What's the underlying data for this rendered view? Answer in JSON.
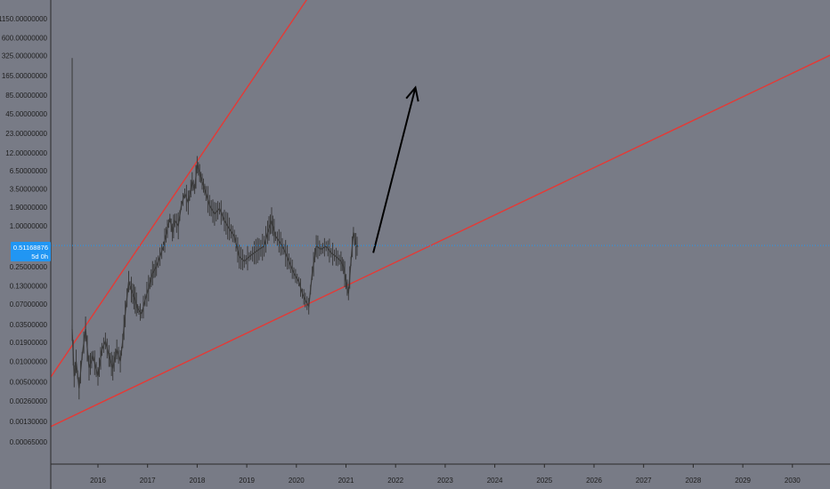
{
  "chart_data": {
    "type": "line",
    "title": "",
    "xlabel": "",
    "ylabel": "",
    "y_scale": "log",
    "ylim": [
      0.0004,
      1150
    ],
    "xlim": [
      2015.0,
      2030.8
    ],
    "y_ticks": [
      "1150.00000000",
      "600.00000000",
      "325.00000000",
      "165.00000000",
      "85.00000000",
      "45.00000000",
      "23.00000000",
      "12.00000000",
      "6.50000000",
      "3.50000000",
      "1.90000000",
      "1.00000000",
      "0.25000000",
      "0.13000000",
      "0.07000000",
      "0.03500000",
      "0.01900000",
      "0.01000000",
      "0.00500000",
      "0.00260000",
      "0.00130000",
      "0.00065000"
    ],
    "y_tick_values": [
      1150,
      600,
      325,
      165,
      85,
      45,
      23,
      12,
      6.5,
      3.5,
      1.9,
      1.0,
      0.25,
      0.13,
      0.07,
      0.035,
      0.019,
      0.01,
      0.005,
      0.0026,
      0.0013,
      0.00065
    ],
    "x_ticks": [
      "2016",
      "2017",
      "2018",
      "2019",
      "2020",
      "2021",
      "2022",
      "2023",
      "2024",
      "2025",
      "2026",
      "2027",
      "2028",
      "2029",
      "2030"
    ],
    "x_tick_values": [
      2016,
      2017,
      2018,
      2019,
      2020,
      2021,
      2022,
      2023,
      2024,
      2025,
      2026,
      2027,
      2028,
      2029,
      2030
    ],
    "price_line": {
      "value": 0.51168876,
      "label": "0.51168876",
      "countdown": "5d 0h",
      "color": "#2196f3"
    },
    "series": [
      {
        "color": "#3a3a3a",
        "x": [
          2015.48,
          2015.52,
          2015.56,
          2015.62,
          2015.68,
          2015.75,
          2015.82,
          2015.9,
          2016.0,
          2016.08,
          2016.15,
          2016.22,
          2016.3,
          2016.38,
          2016.45,
          2016.5,
          2016.55,
          2016.62,
          2016.7,
          2016.75,
          2016.8,
          2016.88,
          2016.95,
          2017.02,
          2017.1,
          2017.18,
          2017.25,
          2017.32,
          2017.4,
          2017.45,
          2017.5,
          2017.55,
          2017.62,
          2017.68,
          2017.75,
          2017.82,
          2017.9,
          2017.95,
          2018.0,
          2018.05,
          2018.1,
          2018.18,
          2018.25,
          2018.35,
          2018.45,
          2018.55,
          2018.65,
          2018.75,
          2018.85,
          2018.95,
          2019.05,
          2019.15,
          2019.25,
          2019.35,
          2019.42,
          2019.5,
          2019.58,
          2019.65,
          2019.75,
          2019.85,
          2019.95,
          2020.05,
          2020.12,
          2020.18,
          2020.25,
          2020.32,
          2020.4,
          2020.5,
          2020.6,
          2020.7,
          2020.8,
          2020.9,
          2020.95,
          2021.0,
          2021.05,
          2021.1,
          2021.15,
          2021.2,
          2021.25
        ],
        "values": [
          0.03,
          0.006,
          0.01,
          0.004,
          0.012,
          0.03,
          0.008,
          0.012,
          0.006,
          0.015,
          0.02,
          0.012,
          0.008,
          0.015,
          0.01,
          0.02,
          0.05,
          0.15,
          0.1,
          0.08,
          0.06,
          0.05,
          0.08,
          0.12,
          0.2,
          0.25,
          0.35,
          0.5,
          0.9,
          1.3,
          0.8,
          1.2,
          1.0,
          2.0,
          3.0,
          2.2,
          4.5,
          3.5,
          8.0,
          6.0,
          4.5,
          3.0,
          2.0,
          1.5,
          1.8,
          1.2,
          0.9,
          0.7,
          0.35,
          0.3,
          0.35,
          0.4,
          0.45,
          0.5,
          0.8,
          1.2,
          0.7,
          0.6,
          0.45,
          0.3,
          0.2,
          0.15,
          0.1,
          0.08,
          0.065,
          0.2,
          0.5,
          0.45,
          0.5,
          0.4,
          0.35,
          0.3,
          0.25,
          0.15,
          0.1,
          0.3,
          0.8,
          0.5,
          0.5
        ]
      }
    ],
    "annotations": [
      {
        "type": "trendline",
        "color": "#e53935",
        "points": [
          [
            2015.0,
            0.0052
          ],
          [
            2018.0,
            9.0
          ]
        ]
      },
      {
        "type": "trendline",
        "color": "#e53935",
        "points": [
          [
            2015.0,
            0.00105
          ],
          [
            2021.0,
            0.13
          ]
        ]
      },
      {
        "type": "arrow",
        "color": "#000000",
        "points": [
          [
            2021.55,
            0.4
          ],
          [
            2022.4,
            110.0
          ]
        ]
      }
    ]
  }
}
